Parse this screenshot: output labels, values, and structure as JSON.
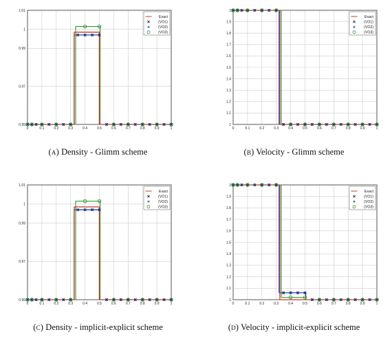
{
  "legend_labels": [
    "Exact",
    "(VO1)",
    "(VO2)",
    "(VO3)"
  ],
  "colors": {
    "exact": "#c0392b",
    "vo1": "#111111",
    "vo2": "#1f3fbf",
    "vo3": "#2e9a2e",
    "grid": "#cccccc",
    "axis": "#333333"
  },
  "chart_data": [
    {
      "type": "line",
      "caption_tag": "(a)",
      "caption_text": "Density - Glimm scheme",
      "xlim": [
        0,
        1
      ],
      "ylim": [
        0.95,
        1.01
      ],
      "xticks": [
        0,
        0.1,
        0.2,
        0.3,
        0.4,
        0.5,
        0.6,
        0.7,
        0.8,
        0.9,
        1
      ],
      "xtick_labels": [
        "0",
        "0.1",
        "0.2",
        "0.3",
        "0.4",
        "0.5",
        "0.6",
        "0.7",
        "0.8",
        "0.9",
        "1"
      ],
      "yticks": [
        0.95,
        0.97,
        0.99,
        1,
        1.01
      ],
      "ytick_labels": [
        "0.95",
        "0.97",
        "0.99",
        "1",
        "1.01"
      ],
      "series": [
        {
          "name": "Exact",
          "style": "line",
          "x": [
            0,
            0.325,
            0.325,
            0.5,
            0.5,
            1
          ],
          "y": [
            0.95,
            0.95,
            0.9985,
            0.9985,
            0.95,
            0.95
          ]
        },
        {
          "name": "(VO1)",
          "style": "cross",
          "x": [
            0,
            0.325,
            0.325,
            0.5,
            0.5,
            1
          ],
          "y": [
            0.95,
            0.95,
            0.997,
            0.997,
            0.95,
            0.95
          ]
        },
        {
          "name": "(VO2)",
          "style": "plus",
          "x": [
            0,
            0.325,
            0.325,
            0.5,
            0.5,
            1
          ],
          "y": [
            0.95,
            0.95,
            0.997,
            0.997,
            0.95,
            0.95
          ]
        },
        {
          "name": "(VO3)",
          "style": "circle",
          "x": [
            0,
            0.335,
            0.335,
            0.505,
            0.505,
            1
          ],
          "y": [
            0.95,
            0.95,
            1.0015,
            1.0015,
            0.95,
            0.95
          ]
        }
      ],
      "legend": "top-right"
    },
    {
      "type": "line",
      "caption_tag": "(b)",
      "caption_text": "Velocity - Glimm scheme",
      "xlim": [
        0,
        1
      ],
      "ylim": [
        1,
        2
      ],
      "xticks": [
        0,
        0.1,
        0.2,
        0.3,
        0.4,
        0.5,
        0.6,
        0.7,
        0.8,
        0.9,
        1
      ],
      "xtick_labels": [
        "0",
        "0.1",
        "0.2",
        "0.3",
        "0.4",
        "0.5",
        "0.6",
        "0.7",
        "0.8",
        "0.9",
        "1"
      ],
      "yticks": [
        1,
        1.1,
        1.2,
        1.3,
        1.4,
        1.5,
        1.6,
        1.7,
        1.8,
        1.9,
        2
      ],
      "ytick_labels": [
        "1",
        "1.1",
        "1.2",
        "1.3",
        "1.4",
        "1.5",
        "1.6",
        "1.7",
        "1.8",
        "1.9",
        "2"
      ],
      "series": [
        {
          "name": "Exact",
          "style": "line",
          "x": [
            0,
            0.325,
            0.325,
            1
          ],
          "y": [
            2,
            2,
            1,
            1
          ]
        },
        {
          "name": "(VO1)",
          "style": "cross",
          "x": [
            0,
            0.32,
            0.32,
            1
          ],
          "y": [
            2,
            2,
            1,
            1
          ]
        },
        {
          "name": "(VO2)",
          "style": "plus",
          "x": [
            0,
            0.32,
            0.32,
            1
          ],
          "y": [
            2,
            2,
            1,
            1
          ]
        },
        {
          "name": "(VO3)",
          "style": "circle",
          "x": [
            0,
            0.335,
            0.335,
            1
          ],
          "y": [
            2,
            2,
            1,
            1
          ]
        }
      ],
      "legend": "top-right"
    },
    {
      "type": "line",
      "caption_tag": "(c)",
      "caption_text": "Density - implicit-explicit scheme",
      "xlim": [
        0,
        1
      ],
      "ylim": [
        0.95,
        1.01
      ],
      "xticks": [
        0,
        0.1,
        0.2,
        0.3,
        0.4,
        0.5,
        0.6,
        0.7,
        0.8,
        0.9,
        1
      ],
      "xtick_labels": [
        "0",
        "0.1",
        "0.2",
        "0.3",
        "0.4",
        "0.5",
        "0.6",
        "0.7",
        "0.8",
        "0.9",
        "1"
      ],
      "yticks": [
        0.95,
        0.97,
        0.99,
        1,
        1.01
      ],
      "ytick_labels": [
        "0.95",
        "0.97",
        "0.99",
        "1",
        "1.01"
      ],
      "series": [
        {
          "name": "Exact",
          "style": "line",
          "x": [
            0,
            0.325,
            0.325,
            0.5,
            0.5,
            1
          ],
          "y": [
            0.95,
            0.95,
            0.9985,
            0.9985,
            0.95,
            0.95
          ]
        },
        {
          "name": "(VO1)",
          "style": "cross",
          "x": [
            0,
            0.325,
            0.325,
            0.5,
            0.5,
            1
          ],
          "y": [
            0.95,
            0.95,
            0.997,
            0.997,
            0.95,
            0.95
          ]
        },
        {
          "name": "(VO2)",
          "style": "plus",
          "x": [
            0,
            0.325,
            0.325,
            0.5,
            0.5,
            1
          ],
          "y": [
            0.95,
            0.95,
            0.997,
            0.997,
            0.95,
            0.95
          ]
        },
        {
          "name": "(VO3)",
          "style": "circle",
          "x": [
            0,
            0.335,
            0.335,
            0.505,
            0.505,
            1
          ],
          "y": [
            0.95,
            0.95,
            1.0015,
            1.0015,
            0.95,
            0.95
          ]
        }
      ],
      "legend": "top-right"
    },
    {
      "type": "line",
      "caption_tag": "(d)",
      "caption_text": "Velocity - implicit-explicit scheme",
      "xlim": [
        0,
        1
      ],
      "ylim": [
        1,
        2
      ],
      "xticks": [
        0,
        0.1,
        0.2,
        0.3,
        0.4,
        0.5,
        0.6,
        0.7,
        0.8,
        0.9,
        1
      ],
      "xtick_labels": [
        "0",
        "0.1",
        "0.2",
        "0.3",
        "0.4",
        "0.5",
        "0.6",
        "0.7",
        "0.8",
        "0.9",
        "1"
      ],
      "yticks": [
        1,
        1.1,
        1.2,
        1.3,
        1.4,
        1.5,
        1.6,
        1.7,
        1.8,
        1.9,
        2
      ],
      "ytick_labels": [
        "1",
        "1.1",
        "1.2",
        "1.3",
        "1.4",
        "1.5",
        "1.6",
        "1.7",
        "1.8",
        "1.9",
        "2"
      ],
      "series": [
        {
          "name": "Exact",
          "style": "line",
          "x": [
            0,
            0.325,
            0.325,
            1
          ],
          "y": [
            2,
            2,
            1,
            1
          ]
        },
        {
          "name": "(VO1)",
          "style": "cross",
          "x": [
            0,
            0.32,
            0.32,
            0.505,
            0.505,
            1
          ],
          "y": [
            2,
            2,
            1.06,
            1.06,
            1,
            1
          ]
        },
        {
          "name": "(VO2)",
          "style": "plus",
          "x": [
            0,
            0.32,
            0.32,
            0.505,
            0.505,
            1
          ],
          "y": [
            2,
            2,
            1.06,
            1.06,
            1,
            1
          ]
        },
        {
          "name": "(VO3)",
          "style": "circle",
          "x": [
            0,
            0.335,
            0.335,
            0.505,
            0.505,
            1
          ],
          "y": [
            2,
            2,
            1.02,
            1.02,
            1,
            1
          ]
        }
      ],
      "legend": "top-right"
    }
  ]
}
